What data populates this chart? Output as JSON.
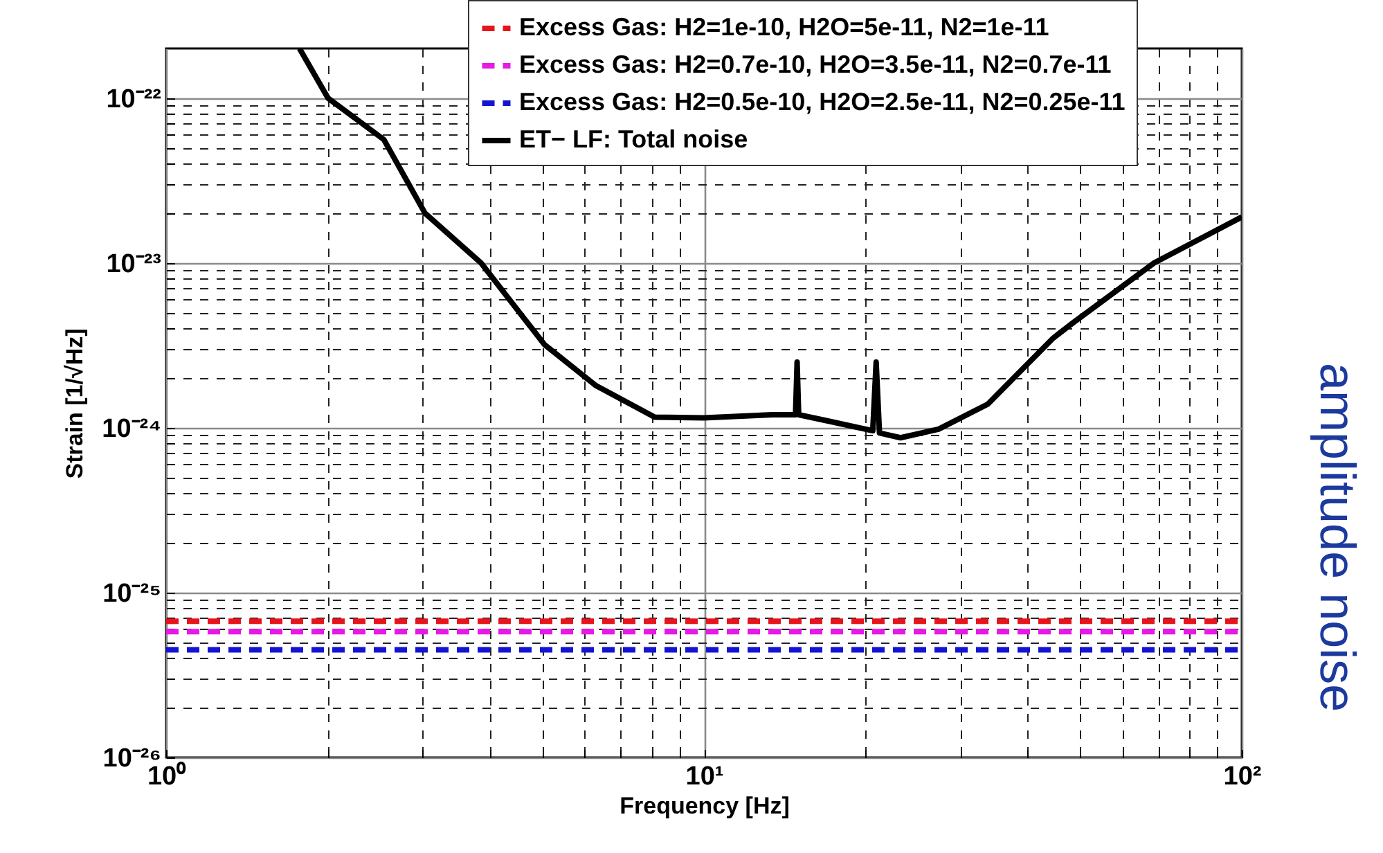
{
  "chart_data": {
    "type": "line",
    "xlabel": "Frequency [Hz]",
    "ylabel": "Strain [1/√Hz]",
    "log": "xy",
    "grid": true,
    "legend": "top right",
    "xlim": [
      1,
      100
    ],
    "ylim": [
      1e-26,
      2e-22
    ],
    "xticks": [
      {
        "value": 1,
        "label": "10⁰"
      },
      {
        "value": 2,
        "label": null
      },
      {
        "value": 3,
        "label": null
      },
      {
        "value": 4,
        "label": null
      },
      {
        "value": 5,
        "label": null
      },
      {
        "value": 6,
        "label": null
      },
      {
        "value": 7,
        "label": null
      },
      {
        "value": 8,
        "label": null
      },
      {
        "value": 9,
        "label": null
      },
      {
        "value": 10,
        "label": "10¹"
      },
      {
        "value": 20,
        "label": null
      },
      {
        "value": 30,
        "label": null
      },
      {
        "value": 40,
        "label": null
      },
      {
        "value": 50,
        "label": null
      },
      {
        "value": 60,
        "label": null
      },
      {
        "value": 70,
        "label": null
      },
      {
        "value": 80,
        "label": null
      },
      {
        "value": 90,
        "label": null
      },
      {
        "value": 100,
        "label": "10²"
      }
    ],
    "yticks": [
      {
        "value": 1e-26,
        "label": "10⁻²⁶"
      },
      {
        "value": 2e-26,
        "label": null
      },
      {
        "value": 3e-26,
        "label": null
      },
      {
        "value": 4e-26,
        "label": null
      },
      {
        "value": 5e-26,
        "label": null
      },
      {
        "value": 6e-26,
        "label": null
      },
      {
        "value": 7e-26,
        "label": null
      },
      {
        "value": 8e-26,
        "label": null
      },
      {
        "value": 9e-26,
        "label": null
      },
      {
        "value": 1e-25,
        "label": "10⁻²⁵"
      },
      {
        "value": 2e-25,
        "label": null
      },
      {
        "value": 3e-25,
        "label": null
      },
      {
        "value": 4e-25,
        "label": null
      },
      {
        "value": 5e-25,
        "label": null
      },
      {
        "value": 6e-25,
        "label": null
      },
      {
        "value": 7e-25,
        "label": null
      },
      {
        "value": 8e-25,
        "label": null
      },
      {
        "value": 9e-25,
        "label": null
      },
      {
        "value": 1e-24,
        "label": "10⁻²⁴"
      },
      {
        "value": 2e-24,
        "label": null
      },
      {
        "value": 3e-24,
        "label": null
      },
      {
        "value": 4e-24,
        "label": null
      },
      {
        "value": 5e-24,
        "label": null
      },
      {
        "value": 6e-24,
        "label": null
      },
      {
        "value": 7e-24,
        "label": null
      },
      {
        "value": 8e-24,
        "label": null
      },
      {
        "value": 9e-24,
        "label": null
      },
      {
        "value": 1e-23,
        "label": "10⁻²³"
      },
      {
        "value": 2e-23,
        "label": null
      },
      {
        "value": 3e-23,
        "label": null
      },
      {
        "value": 4e-23,
        "label": null
      },
      {
        "value": 5e-23,
        "label": null
      },
      {
        "value": 6e-23,
        "label": null
      },
      {
        "value": 7e-23,
        "label": null
      },
      {
        "value": 8e-23,
        "label": null
      },
      {
        "value": 9e-23,
        "label": null
      },
      {
        "value": 1e-22,
        "label": "10⁻²²"
      }
    ],
    "series": [
      {
        "name": "Excess Gas: H2=1e-10, H2O=5e-11, N2=1e-11",
        "color": "#e8141c",
        "line_style": "dashed",
        "x": [
          1,
          100
        ],
        "values": [
          6.7e-26,
          6.7e-26
        ]
      },
      {
        "name": "Excess Gas: H2=0.7e-10, H2O=3.5e-11, N2=0.7e-11",
        "color": "#e619e6",
        "line_style": "dashed",
        "x": [
          1,
          100
        ],
        "values": [
          5.8e-26,
          5.8e-26
        ]
      },
      {
        "name": "Excess Gas: H2=0.5e-10, H2O=2.5e-11, N2=0.25e-11",
        "color": "#1414d2",
        "line_style": "dashed",
        "x": [
          1,
          100
        ],
        "values": [
          4.5e-26,
          4.5e-26
        ]
      },
      {
        "name": "ET− LF: Total noise",
        "color": "#000000",
        "line_style": "solid",
        "x": [
          1.77,
          2.0,
          2.54,
          3.03,
          3.85,
          5.05,
          6.3,
          8.1,
          10,
          13.4,
          14.8,
          14.9,
          15.0,
          17,
          20.6,
          20.9,
          21.2,
          23.2,
          27.3,
          33.7,
          44.6,
          48.4,
          68.7,
          100
        ],
        "values": [
          2e-22,
          1e-22,
          5.6e-23,
          2e-23,
          1e-23,
          3.2e-24,
          1.8e-24,
          1.16e-24,
          1.15e-24,
          1.2e-24,
          1.2e-24,
          2.5e-24,
          1.2e-24,
          1.1e-24,
          9.6e-25,
          2.5e-24,
          9.3e-25,
          8.7e-25,
          9.8e-25,
          1.39e-24,
          3.5e-24,
          4.3e-24,
          1e-23,
          1.9e-23
        ]
      }
    ],
    "annotations": [
      "amplitude noise"
    ]
  }
}
